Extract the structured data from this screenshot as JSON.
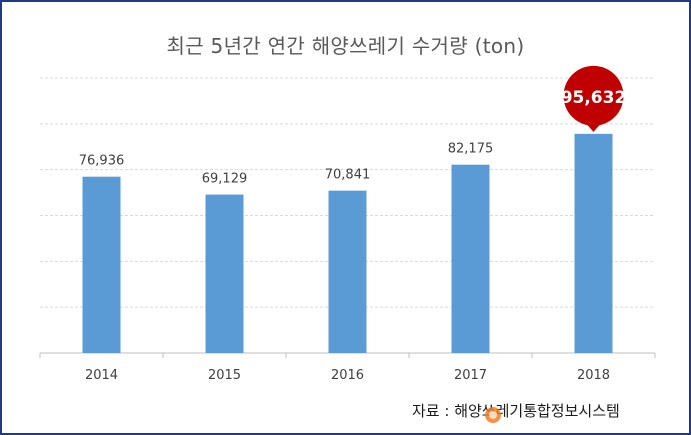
{
  "title": "최근 5년간 연간 해양쓰레기 수거량 (ton)",
  "source": "자료 : 해양쓰레기통합정보시스템",
  "colors": {
    "bar": "#5b9bd5",
    "highlight": "#c00000",
    "frame": "#1f3a8a",
    "grid": "#d9d9d9",
    "label": "#404040"
  },
  "chart_data": {
    "type": "bar",
    "title": "최근 5년간 연간 해양쓰레기 수거량 (ton)",
    "categories": [
      "2014",
      "2015",
      "2016",
      "2017",
      "2018"
    ],
    "values": [
      76936,
      69129,
      70841,
      82175,
      95632
    ],
    "data_labels": [
      "76,936",
      "69,129",
      "70,841",
      "82,175",
      "95,632"
    ],
    "highlighted_category": "2018",
    "ylim": [
      0,
      120000
    ],
    "y_gridline_step": 20000,
    "grid": true,
    "legend": "none",
    "xlabel": "",
    "ylabel": ""
  }
}
